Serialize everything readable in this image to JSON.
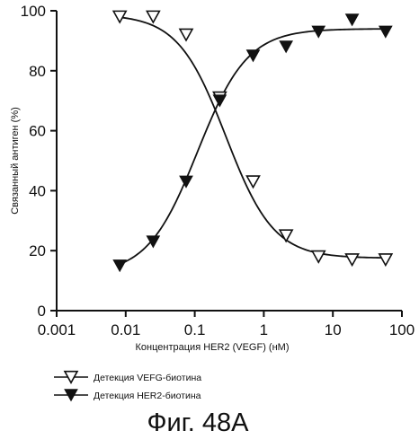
{
  "chart_data": {
    "type": "scatter",
    "xscale": "log",
    "xlim": [
      0.001,
      100
    ],
    "ylim": [
      0,
      100
    ],
    "xticks": [
      "0.001",
      "0.01",
      "0.1",
      "1",
      "10",
      "100"
    ],
    "yticks": [
      "0",
      "20",
      "40",
      "60",
      "80",
      "100"
    ],
    "xlabel": "Концентрация HER2 (VEGF) (нМ)",
    "ylabel": "Связанный антиген (%)",
    "grid": false,
    "legend_position": "bottom-left",
    "series": [
      {
        "name": "Детекция VEFG-биотина",
        "marker": "open-triangle-down",
        "color": "#111111",
        "x": [
          0.0082,
          0.025,
          0.075,
          0.23,
          0.7,
          2.1,
          6.2,
          19,
          58
        ],
        "y": [
          98,
          98,
          92,
          71,
          43,
          25,
          18,
          17,
          17
        ]
      },
      {
        "name": "Детекция HER2-биотина",
        "marker": "filled-triangle-down",
        "color": "#111111",
        "x": [
          0.0082,
          0.025,
          0.075,
          0.23,
          0.7,
          2.1,
          6.2,
          19,
          58
        ],
        "y": [
          15,
          23,
          43,
          70,
          85,
          88,
          93,
          97,
          93
        ]
      }
    ],
    "fits": [
      {
        "series": "Детекция VEFG-биотина",
        "bottom": 17.5,
        "top": 98.8,
        "log_ec50": -0.55,
        "hill": -1.25
      },
      {
        "series": "Детекция HER2-биотина",
        "bottom": 12.0,
        "top": 94.0,
        "log_ec50": -0.96,
        "hill": 1.2
      }
    ]
  },
  "caption": "Фиг. 48А"
}
